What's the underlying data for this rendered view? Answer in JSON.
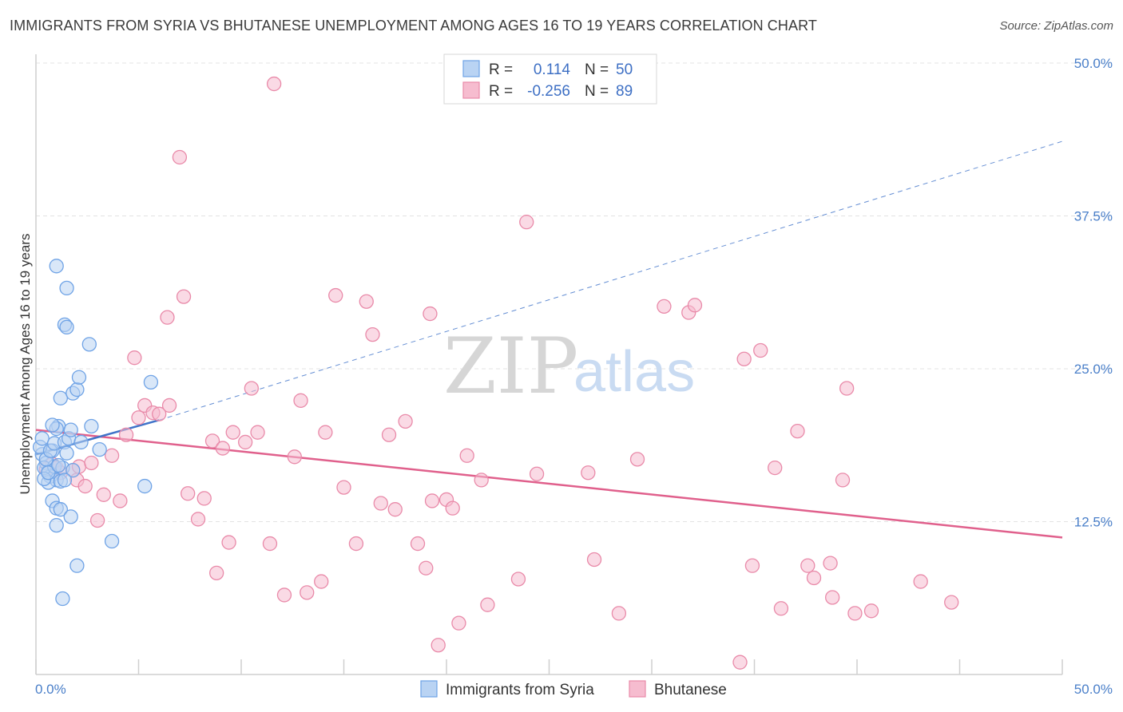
{
  "header": {
    "title": "IMMIGRANTS FROM SYRIA VS BHUTANESE UNEMPLOYMENT AMONG AGES 16 TO 19 YEARS CORRELATION CHART",
    "source": "Source: ZipAtlas.com"
  },
  "legend": {
    "series1": {
      "r_label": "R =",
      "r_value": "0.114",
      "n_label": "N =",
      "n_value": "50"
    },
    "series2": {
      "r_label": "R =",
      "r_value": "-0.256",
      "n_label": "N =",
      "n_value": "89"
    }
  },
  "watermark": {
    "zip": "ZIP",
    "atlas": "atlas"
  },
  "chart_data": {
    "type": "scatter",
    "title": "IMMIGRANTS FROM SYRIA VS BHUTANESE UNEMPLOYMENT AMONG AGES 16 TO 19 YEARS CORRELATION CHART",
    "xlabel": "",
    "ylabel": "Unemployment Among Ages 16 to 19 years",
    "xlim": [
      0,
      50
    ],
    "ylim": [
      0,
      50
    ],
    "x_tick_labels": [
      "0.0%",
      "50.0%"
    ],
    "y_ticks": [
      12.5,
      25.0,
      37.5,
      50.0
    ],
    "y_tick_labels": [
      "12.5%",
      "25.0%",
      "37.5%",
      "50.0%"
    ],
    "grid": true,
    "series": [
      {
        "name": "Immigrants from Syria",
        "color": "#6fa3e6",
        "fill": "#b9d3f3",
        "trend_color": "#3f73c9",
        "trend": {
          "x0": 0,
          "y0": 18.0,
          "x1": 6.0,
          "y1": 20.8,
          "x_dash_end": 50,
          "y_dash_end": 43.6
        },
        "points": [
          [
            0.3,
            18.0
          ],
          [
            0.5,
            17.3
          ],
          [
            0.6,
            16.6
          ],
          [
            0.7,
            16.2
          ],
          [
            0.4,
            16.9
          ],
          [
            0.8,
            18.3
          ],
          [
            0.9,
            17.0
          ],
          [
            1.0,
            15.9
          ],
          [
            0.6,
            15.7
          ],
          [
            0.5,
            17.6
          ],
          [
            0.2,
            18.6
          ],
          [
            0.3,
            19.3
          ],
          [
            0.7,
            18.3
          ],
          [
            0.9,
            18.9
          ],
          [
            1.1,
            20.3
          ],
          [
            1.3,
            16.9
          ],
          [
            1.0,
            20.1
          ],
          [
            1.4,
            19.0
          ],
          [
            1.6,
            19.3
          ],
          [
            1.5,
            18.1
          ],
          [
            1.7,
            20.0
          ],
          [
            1.8,
            16.7
          ],
          [
            2.2,
            19.0
          ],
          [
            2.7,
            20.3
          ],
          [
            3.1,
            18.4
          ],
          [
            0.8,
            20.4
          ],
          [
            1.2,
            15.8
          ],
          [
            1.4,
            15.9
          ],
          [
            0.8,
            14.2
          ],
          [
            1.0,
            13.6
          ],
          [
            1.2,
            13.5
          ],
          [
            1.7,
            12.9
          ],
          [
            1.0,
            12.2
          ],
          [
            1.2,
            22.6
          ],
          [
            1.8,
            23.0
          ],
          [
            2.0,
            23.3
          ],
          [
            2.1,
            24.3
          ],
          [
            2.6,
            27.0
          ],
          [
            1.4,
            28.6
          ],
          [
            1.5,
            28.4
          ],
          [
            1.5,
            31.6
          ],
          [
            1.0,
            33.4
          ],
          [
            3.7,
            10.9
          ],
          [
            2.0,
            8.9
          ],
          [
            1.3,
            6.2
          ],
          [
            5.3,
            15.4
          ],
          [
            5.6,
            23.9
          ],
          [
            0.4,
            16.0
          ],
          [
            0.6,
            16.5
          ],
          [
            1.1,
            17.1
          ]
        ]
      },
      {
        "name": "Bhutanese",
        "color": "#e98aa9",
        "fill": "#f6bccf",
        "trend_color": "#e0608c",
        "trend": {
          "x0": 0,
          "y0": 20.0,
          "x1": 50,
          "y1": 11.2
        },
        "points": [
          [
            0.5,
            16.8
          ],
          [
            0.8,
            17.2
          ],
          [
            1.0,
            16.9
          ],
          [
            1.2,
            16.5
          ],
          [
            1.8,
            16.7
          ],
          [
            2.0,
            15.9
          ],
          [
            2.1,
            17.0
          ],
          [
            2.4,
            15.4
          ],
          [
            2.7,
            17.3
          ],
          [
            3.0,
            12.6
          ],
          [
            3.3,
            14.7
          ],
          [
            3.7,
            17.9
          ],
          [
            4.1,
            14.2
          ],
          [
            4.4,
            19.6
          ],
          [
            4.8,
            25.9
          ],
          [
            5.0,
            21.0
          ],
          [
            5.3,
            22.0
          ],
          [
            5.7,
            21.4
          ],
          [
            6.0,
            21.3
          ],
          [
            6.5,
            22.0
          ],
          [
            6.4,
            29.2
          ],
          [
            7.0,
            42.3
          ],
          [
            7.4,
            14.8
          ],
          [
            7.9,
            12.7
          ],
          [
            7.2,
            30.9
          ],
          [
            8.2,
            14.4
          ],
          [
            8.6,
            19.1
          ],
          [
            8.8,
            8.3
          ],
          [
            9.1,
            18.5
          ],
          [
            9.4,
            10.8
          ],
          [
            9.6,
            19.8
          ],
          [
            10.2,
            19.0
          ],
          [
            10.8,
            19.8
          ],
          [
            10.5,
            23.4
          ],
          [
            11.4,
            10.7
          ],
          [
            11.6,
            48.3
          ],
          [
            12.1,
            6.5
          ],
          [
            12.6,
            17.8
          ],
          [
            12.9,
            22.4
          ],
          [
            13.2,
            6.7
          ],
          [
            13.9,
            7.6
          ],
          [
            14.1,
            19.8
          ],
          [
            14.6,
            31.0
          ],
          [
            15.0,
            15.3
          ],
          [
            15.6,
            10.7
          ],
          [
            16.1,
            30.5
          ],
          [
            16.4,
            27.8
          ],
          [
            16.8,
            14.0
          ],
          [
            17.2,
            19.6
          ],
          [
            17.5,
            13.5
          ],
          [
            18.0,
            20.7
          ],
          [
            18.6,
            10.7
          ],
          [
            19.0,
            8.7
          ],
          [
            19.2,
            29.5
          ],
          [
            19.3,
            14.2
          ],
          [
            19.6,
            2.4
          ],
          [
            20.0,
            14.3
          ],
          [
            20.3,
            13.6
          ],
          [
            20.6,
            4.2
          ],
          [
            21.0,
            17.9
          ],
          [
            21.7,
            15.9
          ],
          [
            22.0,
            5.7
          ],
          [
            23.5,
            7.8
          ],
          [
            23.9,
            37.0
          ],
          [
            24.4,
            16.4
          ],
          [
            26.9,
            16.5
          ],
          [
            27.2,
            9.4
          ],
          [
            28.4,
            5.0
          ],
          [
            29.3,
            17.6
          ],
          [
            30.6,
            30.1
          ],
          [
            31.8,
            29.6
          ],
          [
            32.1,
            30.2
          ],
          [
            34.3,
            1.0
          ],
          [
            34.5,
            25.8
          ],
          [
            34.9,
            8.9
          ],
          [
            35.3,
            26.5
          ],
          [
            36.0,
            16.9
          ],
          [
            36.3,
            5.4
          ],
          [
            37.1,
            19.9
          ],
          [
            37.6,
            8.9
          ],
          [
            37.9,
            7.9
          ],
          [
            38.7,
            9.1
          ],
          [
            38.8,
            6.3
          ],
          [
            39.3,
            15.9
          ],
          [
            39.5,
            23.4
          ],
          [
            39.9,
            5.0
          ],
          [
            40.7,
            5.2
          ],
          [
            43.1,
            7.6
          ],
          [
            44.6,
            5.9
          ]
        ]
      }
    ]
  },
  "bottom_legend": {
    "series1_label": "Immigrants from Syria",
    "series2_label": "Bhutanese"
  }
}
